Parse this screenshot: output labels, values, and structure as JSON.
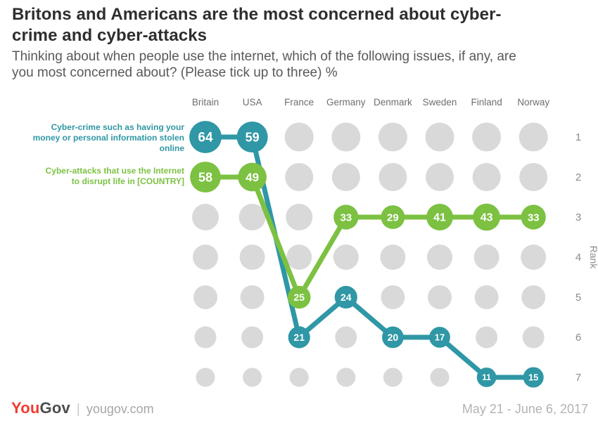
{
  "header": {
    "title": "Britons and Americans are the most concerned about cyber-crime and cyber-attacks",
    "subtitle": "Thinking about when people use the internet, which of the following issues, if any, are you most concerned about? (Please tick up to three) %"
  },
  "chart_data": {
    "type": "line",
    "subtype": "bump-rank-chart",
    "title": "Britons and Americans are the most concerned about cyber-crime and cyber-attacks",
    "categories": [
      "Britain",
      "USA",
      "France",
      "Germany",
      "Denmark",
      "Sweden",
      "Finland",
      "Norway"
    ],
    "rank_axis": {
      "label": "Rank",
      "ticks": [
        "1",
        "2",
        "3",
        "4",
        "5",
        "6",
        "7"
      ]
    },
    "series": [
      {
        "name": "Cyber-crime such as having your money or personal information stolen online",
        "color": "#2f97a5",
        "values": [
          64,
          59,
          21,
          24,
          20,
          17,
          11,
          15
        ],
        "ranks": [
          1,
          1,
          6,
          5,
          6,
          6,
          7,
          7
        ]
      },
      {
        "name": "Cyber-attacks that use the Internet to disrupt life in [COUNTRY]",
        "color": "#7cc142",
        "values": [
          58,
          49,
          25,
          33,
          29,
          41,
          43,
          33
        ],
        "ranks": [
          2,
          2,
          5,
          3,
          3,
          3,
          3,
          3
        ]
      }
    ],
    "background_dot_color": "#d9d9d9",
    "value_label_color": "#ffffff",
    "axis_text_color": "#8c8c8c",
    "category_text_color": "#6e6e6e"
  },
  "footer": {
    "logo_you": "You",
    "logo_gov": "Gov",
    "logo_you_color": "#f13c2f",
    "separator": "|",
    "site": "yougov.com",
    "date_range": "May 21 - June 6, 2017"
  }
}
